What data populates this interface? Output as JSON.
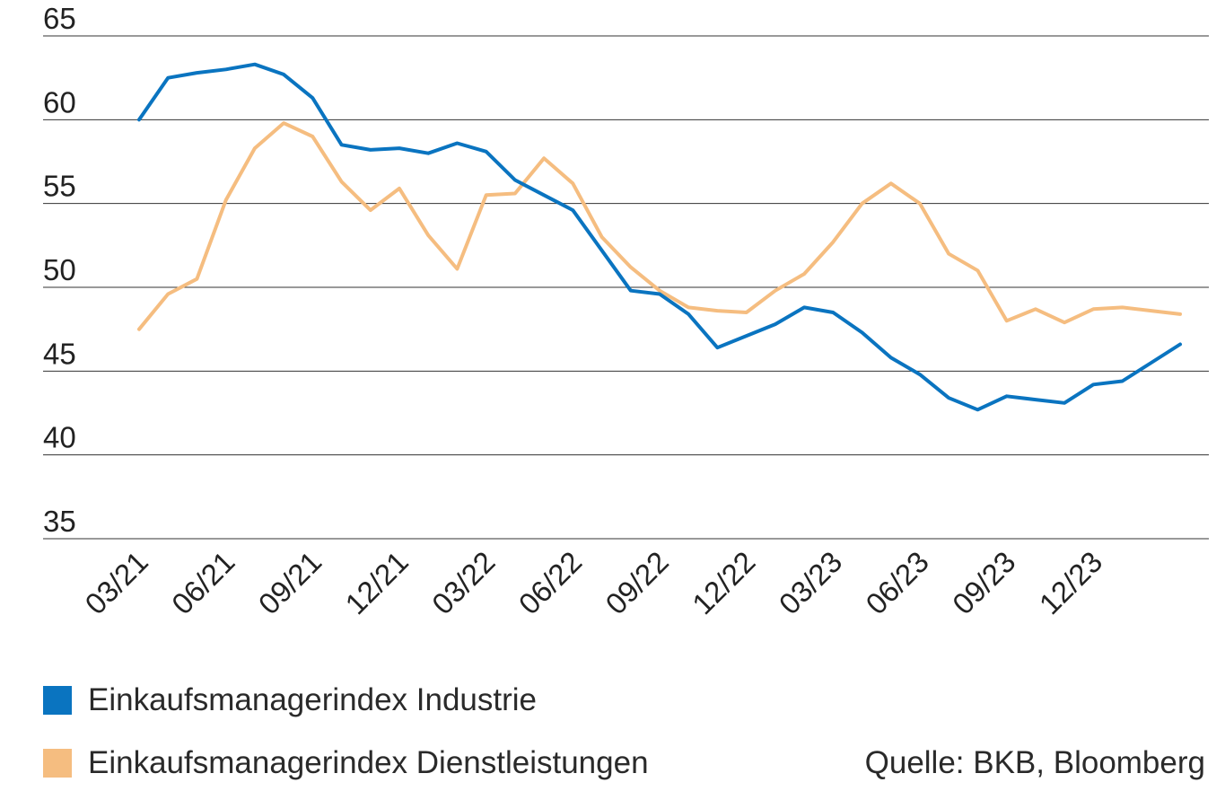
{
  "chart_data": {
    "type": "line",
    "ylim": [
      35,
      65
    ],
    "yticks": [
      35,
      40,
      45,
      50,
      55,
      60,
      65
    ],
    "grid": true,
    "x_tick_labels": [
      "03/21",
      "06/21",
      "09/21",
      "12/21",
      "03/22",
      "06/22",
      "09/22",
      "12/22",
      "03/23",
      "06/23",
      "09/23",
      "12/23"
    ],
    "x_tick_indices": [
      0,
      3,
      6,
      9,
      12,
      15,
      18,
      21,
      24,
      27,
      30,
      33
    ],
    "x": [
      "03/21",
      "04/21",
      "05/21",
      "06/21",
      "07/21",
      "08/21",
      "09/21",
      "10/21",
      "11/21",
      "12/21",
      "01/22",
      "02/22",
      "03/22",
      "04/22",
      "05/22",
      "06/22",
      "07/22",
      "08/22",
      "09/22",
      "10/22",
      "11/22",
      "12/22",
      "01/23",
      "02/23",
      "03/23",
      "04/23",
      "05/23",
      "06/23",
      "07/23",
      "08/23",
      "09/23",
      "10/23",
      "11/23",
      "12/23",
      "01/24",
      "02/24",
      "03/24"
    ],
    "series": [
      {
        "name": "Einkaufsmanagerindex Industrie",
        "color": "#0a74c0",
        "values": [
          60.0,
          62.5,
          62.8,
          63.0,
          63.3,
          62.7,
          61.3,
          58.5,
          58.2,
          58.3,
          58.0,
          58.6,
          58.1,
          56.4,
          55.5,
          54.6,
          52.2,
          49.8,
          49.6,
          48.4,
          46.4,
          47.1,
          47.8,
          48.8,
          48.5,
          47.3,
          45.8,
          44.8,
          43.4,
          42.7,
          43.5,
          43.3,
          43.1,
          44.2,
          44.4,
          45.5,
          46.6
        ]
      },
      {
        "name": "Einkaufsmanagerindex Dienstleistungen",
        "color": "#f5bd80",
        "values": [
          47.5,
          49.6,
          50.5,
          55.2,
          58.3,
          59.8,
          59.0,
          56.3,
          54.6,
          55.9,
          53.1,
          51.1,
          55.5,
          55.6,
          57.7,
          56.2,
          53.0,
          51.2,
          49.8,
          48.8,
          48.6,
          48.5,
          49.8,
          50.8,
          52.7,
          55.0,
          56.2,
          55.0,
          52.0,
          51.0,
          48.0,
          48.7,
          47.9,
          48.7,
          48.8,
          48.6,
          48.4
        ]
      }
    ]
  },
  "source": "Quelle: BKB, Bloomberg"
}
